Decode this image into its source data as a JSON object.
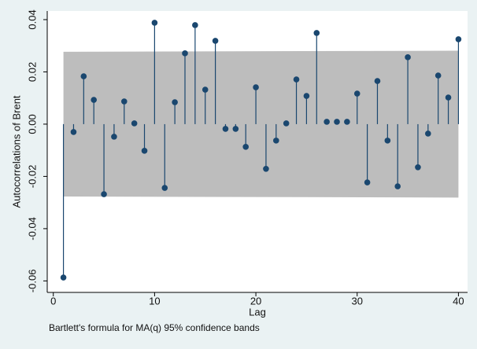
{
  "chart_data": {
    "type": "stem",
    "y_label": "Autocorrelations of Brent",
    "x_label": "Lag",
    "note": "Bartlett's formula for MA(q) 95% confidence bands",
    "x": [
      1,
      2,
      3,
      4,
      5,
      6,
      7,
      8,
      9,
      10,
      11,
      12,
      13,
      14,
      15,
      16,
      17,
      18,
      19,
      20,
      21,
      22,
      23,
      24,
      25,
      26,
      27,
      28,
      29,
      30,
      31,
      32,
      33,
      34,
      35,
      36,
      37,
      38,
      39,
      40
    ],
    "series": [
      {
        "color": "#1a476f",
        "values": [
          -0.0587,
          -0.003,
          0.0183,
          0.0093,
          -0.0268,
          -0.0048,
          0.0087,
          0.0003,
          -0.0102,
          0.0388,
          -0.0244,
          0.0084,
          0.0271,
          0.0379,
          0.0132,
          0.0319,
          -0.0018,
          -0.0018,
          -0.0087,
          0.0141,
          -0.0171,
          -0.0063,
          0.0003,
          0.0171,
          0.0108,
          0.0349,
          0.0009,
          0.0009,
          0.0009,
          0.0117,
          -0.0223,
          0.0165,
          -0.0063,
          -0.0238,
          0.0256,
          -0.0165,
          -0.0036,
          0.0186,
          0.0102,
          0.0325
        ]
      }
    ],
    "band": {
      "color": "#bdbdbd",
      "x": [
        1,
        40
      ],
      "upper": [
        0.0277,
        0.0281
      ],
      "lower": [
        -0.0277,
        -0.0281
      ]
    },
    "xlim": [
      -0.6,
      40.9
    ],
    "ylim": [
      -0.0644,
      0.0433
    ],
    "xticks": [
      0,
      10,
      20,
      30,
      40
    ],
    "yticks": [
      -0.06,
      -0.04,
      -0.02,
      {
        "value": 0,
        "label": "0.00"
      },
      0.02,
      0.04
    ]
  }
}
